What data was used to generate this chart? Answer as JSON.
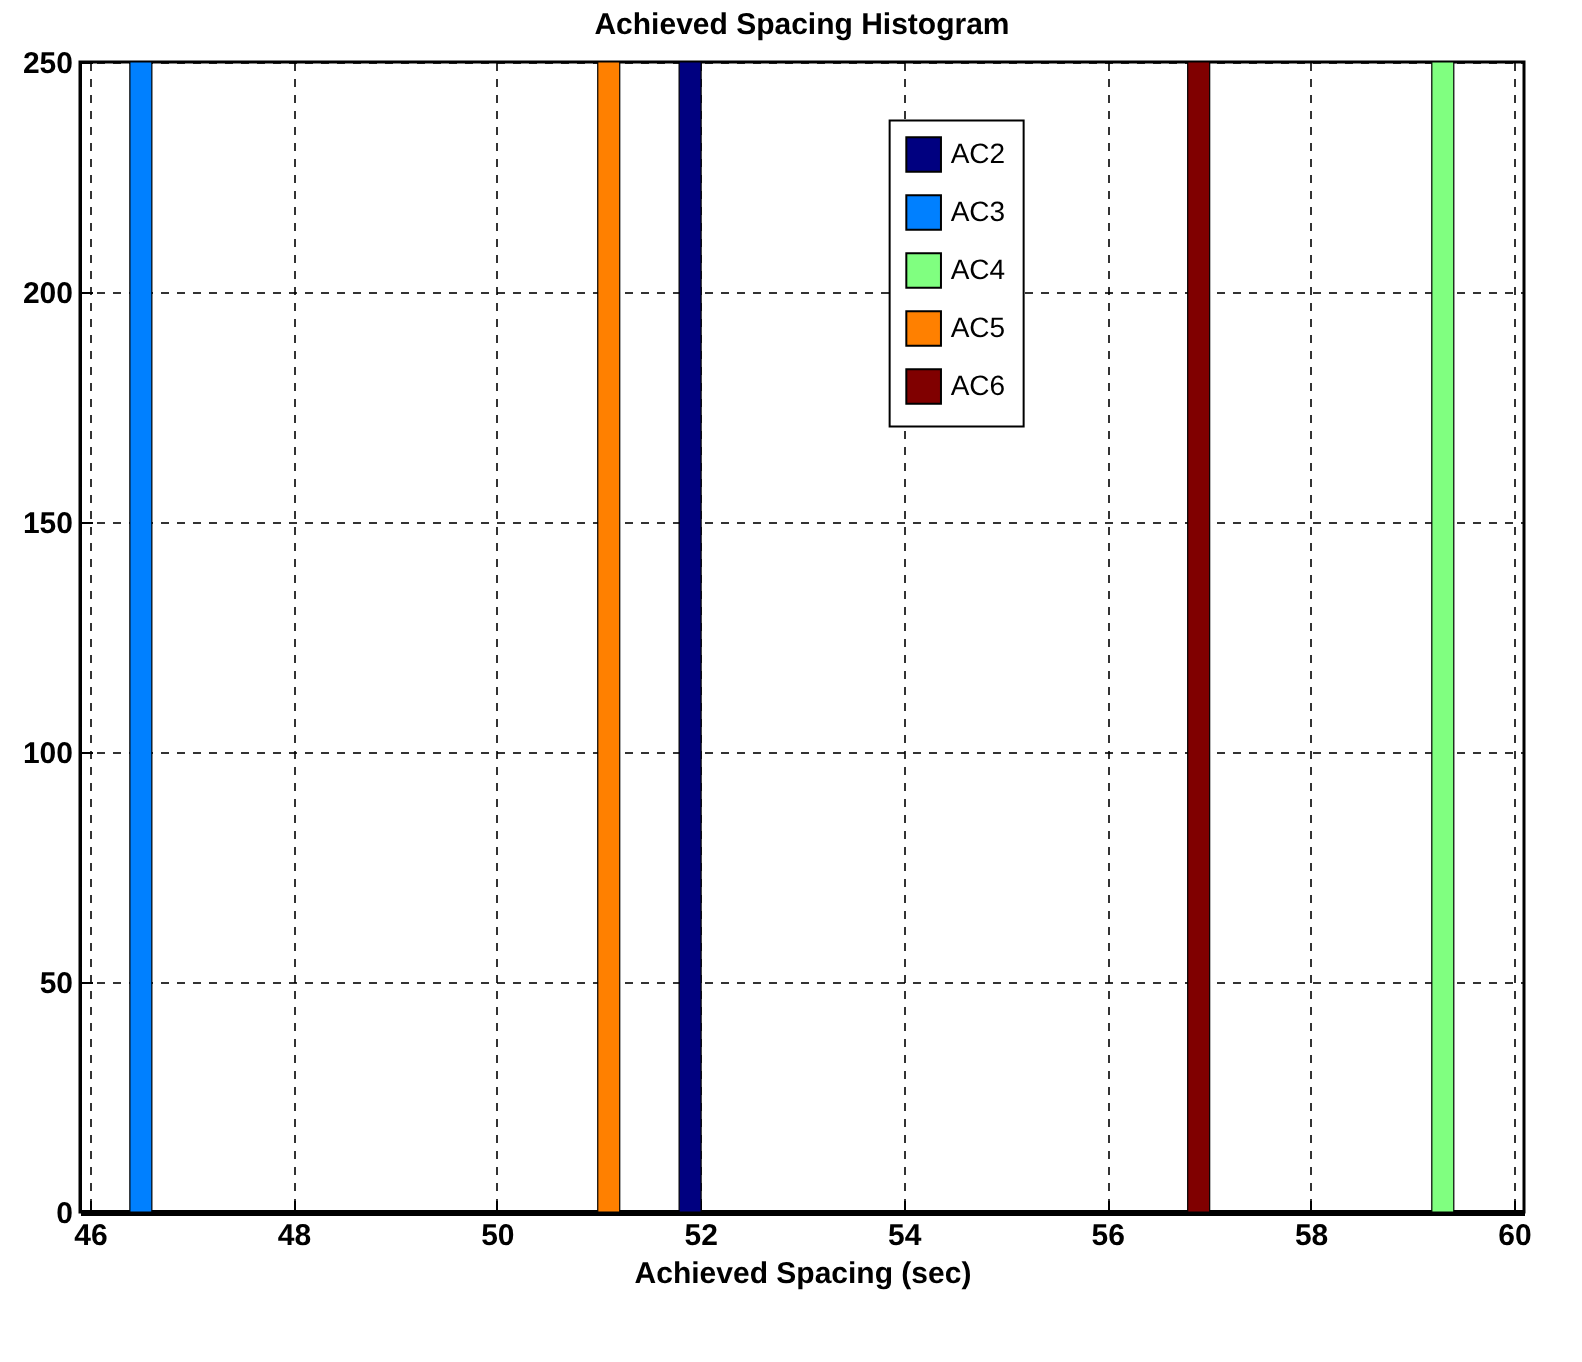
{
  "chart_data": {
    "type": "bar",
    "title": "Achieved Spacing Histogram",
    "xlabel": "Achieved Spacing (sec)",
    "series": [
      {
        "name": "AC2",
        "color": "#000080",
        "x": [
          51.9
        ],
        "values": [
          250
        ]
      },
      {
        "name": "AC3",
        "color": "#0080ff",
        "x": [
          46.5
        ],
        "values": [
          250
        ]
      },
      {
        "name": "AC4",
        "color": "#80ff80",
        "x": [
          59.3
        ],
        "values": [
          250
        ]
      },
      {
        "name": "AC5",
        "color": "#ff8000",
        "x": [
          51.1
        ],
        "values": [
          250
        ]
      },
      {
        "name": "AC6",
        "color": "#800000",
        "x": [
          56.9
        ],
        "values": [
          250
        ]
      }
    ],
    "xlim": [
      46,
      60
    ],
    "xticks": [
      46,
      48,
      50,
      52,
      54,
      56,
      58,
      60
    ],
    "ylim": [
      0,
      250
    ],
    "yticks": [
      0,
      50,
      100,
      150,
      200,
      250
    ],
    "grid": true,
    "legend": "top right"
  }
}
